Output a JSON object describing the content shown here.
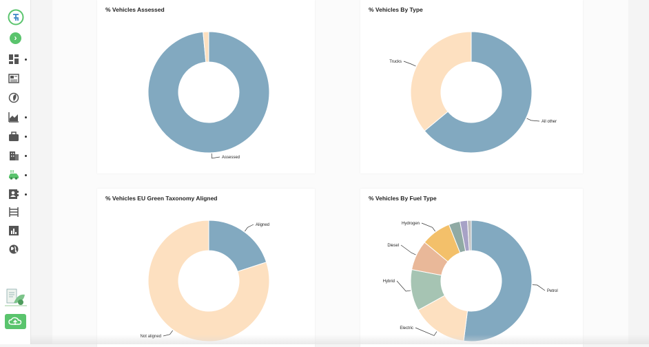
{
  "sidebar": {
    "logo_icon": "green-g-logo",
    "expand_icon": "chevron-right-icon",
    "items": [
      {
        "icon": "dashboard-icon",
        "dot": true
      },
      {
        "icon": "newspaper-icon",
        "dot": false
      },
      {
        "icon": "leaf-gauge-icon",
        "dot": false
      },
      {
        "icon": "area-chart-icon",
        "dot": true
      },
      {
        "icon": "briefcase-icon",
        "dot": true
      },
      {
        "icon": "building-icon",
        "dot": true
      },
      {
        "icon": "electric-car-icon",
        "dot": true
      },
      {
        "icon": "contact-card-icon",
        "dot": true
      },
      {
        "icon": "shelves-icon",
        "dot": false
      },
      {
        "icon": "report-chart-icon",
        "dot": false
      },
      {
        "icon": "globe-icon",
        "dot": false
      }
    ],
    "upload_icon": "cloud-upload-icon"
  },
  "colors": {
    "blue": "#82a9c0",
    "peach": "#fde0c0",
    "green": "#a6c4b3",
    "salmon": "#e9b899",
    "yellow": "#f3c06a",
    "teal": "#90aaa4",
    "purple": "#a7a2c6",
    "accent": "#5ac46d"
  },
  "chart_data": [
    {
      "type": "pie",
      "title": "% Vehicles Assessed",
      "slices": [
        {
          "label": "Assessed",
          "value": 98.5,
          "color": "#82a9c0"
        },
        {
          "label": "",
          "value": 1.5,
          "color": "#fde0c0"
        }
      ]
    },
    {
      "type": "pie",
      "title": "% Vehicles By Type",
      "slices": [
        {
          "label": "All other",
          "value": 64,
          "color": "#82a9c0"
        },
        {
          "label": "Trucks",
          "value": 36,
          "color": "#fde0c0"
        }
      ]
    },
    {
      "type": "pie",
      "title": "% Vehicles EU Green Taxonomy Aligned",
      "slices": [
        {
          "label": "Aligned",
          "value": 20,
          "color": "#82a9c0"
        },
        {
          "label": "Not aligned",
          "value": 80,
          "color": "#fde0c0"
        }
      ]
    },
    {
      "type": "pie",
      "title": "% Vehicles By Fuel Type",
      "slices": [
        {
          "label": "Petrol",
          "value": 52,
          "color": "#82a9c0"
        },
        {
          "label": "Electric",
          "value": 15,
          "color": "#fde0c0"
        },
        {
          "label": "Hybrid",
          "value": 11,
          "color": "#a6c4b3"
        },
        {
          "label": "Diesel",
          "value": 8,
          "color": "#e9b899"
        },
        {
          "label": "Hydrogen",
          "value": 8,
          "color": "#f3c06a"
        },
        {
          "label": "",
          "value": 3,
          "color": "#90aaa4"
        },
        {
          "label": "",
          "value": 2,
          "color": "#a7a2c6"
        },
        {
          "label": "",
          "value": 1,
          "color": "#c0c0c0"
        }
      ]
    }
  ]
}
